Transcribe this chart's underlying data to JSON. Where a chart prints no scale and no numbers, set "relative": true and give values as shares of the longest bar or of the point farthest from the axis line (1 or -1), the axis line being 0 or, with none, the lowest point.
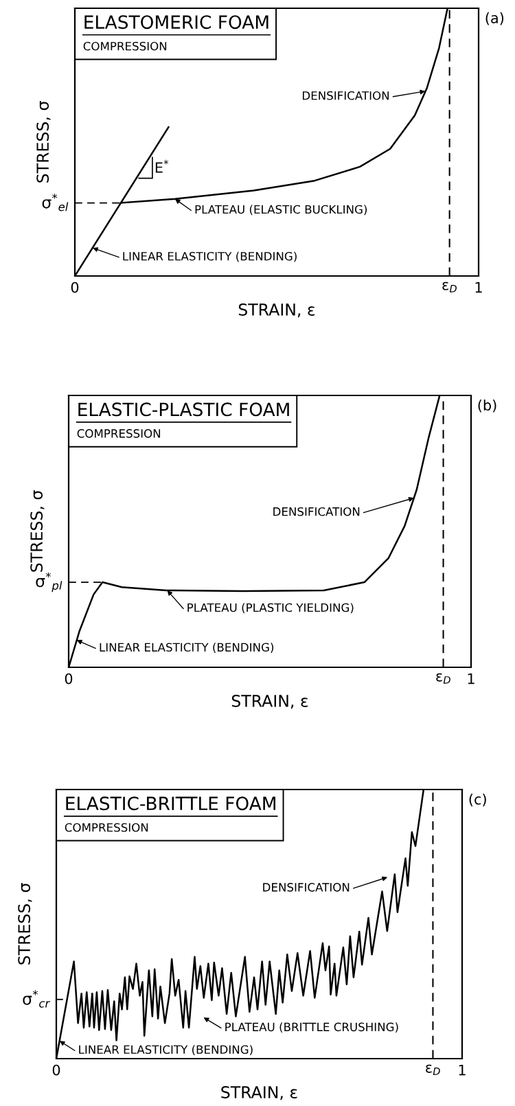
{
  "chart_data": [
    {
      "type": "line",
      "relative": true,
      "title": "ELASTOMERIC FOAM",
      "subtitle": "COMPRESSION",
      "xlabel": "STRAIN, ε",
      "ylabel": "STRESS, σ",
      "xlim": [
        0,
        1
      ],
      "xticks": [
        0,
        1
      ],
      "series": [
        {
          "color": "#000000",
          "x": [
            0,
            0.232
          ],
          "values": [
            0,
            0.556
          ]
        },
        {
          "color": "#000000",
          "x": [
            0.114,
            0.248,
            0.443,
            0.594,
            0.706,
            0.781,
            0.842,
            0.872,
            0.902,
            0.923
          ],
          "values": [
            0.273,
            0.288,
            0.319,
            0.356,
            0.408,
            0.475,
            0.6,
            0.702,
            0.851,
            1.0
          ]
        }
      ],
      "ref_lines": [
        {
          "axis": "y",
          "value": 0.273,
          "label": "σ$^{*}$$_{el}$",
          "line_style": "dashed",
          "color": "#000000"
        },
        {
          "axis": "x",
          "value": 0.928,
          "label": "ε$_{D}$",
          "line_style": "dashed",
          "color": "#000000"
        }
      ],
      "annotations": [
        "(a)",
        "E$^{*}$",
        "DENSIFICATION",
        "PLATEAU (ELASTIC BUCKLING)",
        "LINEAR ELASTICITY (BENDING)"
      ]
    },
    {
      "type": "line",
      "relative": true,
      "title": "ELASTIC-PLASTIC FOAM",
      "subtitle": "COMPRESSION",
      "xlabel": "STRAIN, ε",
      "ylabel": "STRESS, σ",
      "xlim": [
        0,
        1
      ],
      "xticks": [
        0,
        1
      ],
      "series": [
        {
          "color": "#000000",
          "x": [
            0,
            0.027,
            0.062,
            0.084,
            0.132,
            0.243,
            0.433,
            0.634,
            0.735,
            0.795,
            0.835,
            0.865,
            0.895,
            0.922
          ],
          "values": [
            0,
            0.134,
            0.268,
            0.313,
            0.295,
            0.283,
            0.28,
            0.283,
            0.313,
            0.402,
            0.52,
            0.654,
            0.847,
            1.0
          ]
        }
      ],
      "ref_lines": [
        {
          "axis": "y",
          "value": 0.313,
          "label": "σ$^{*}$$_{pl}$",
          "line_style": "dashed",
          "color": "#000000"
        },
        {
          "axis": "x",
          "value": 0.931,
          "label": "ε$_{D}$",
          "line_style": "dashed",
          "color": "#000000"
        }
      ],
      "annotations": [
        "(b)",
        "DENSIFICATION",
        "PLATEAU (PLASTIC YIELDING)",
        "LINEAR ELASTICITY (BENDING)"
      ]
    },
    {
      "type": "line",
      "relative": true,
      "title": "ELASTIC-BRITTLE FOAM",
      "subtitle": "COMPRESSION",
      "xlabel": "STRAIN, ε",
      "ylabel": "STRESS, σ",
      "xlim": [
        0,
        1
      ],
      "xticks": [
        0,
        1
      ],
      "series": [
        {
          "color": "#000000",
          "x": [
            0,
            0.0434,
            0.0535,
            0.062,
            0.0676,
            0.0749,
            0.0817,
            0.0885,
            0.093,
            0.0997,
            0.1054,
            0.1133,
            0.12,
            0.1268,
            0.1352,
            0.1426,
            0.1482,
            0.1561,
            0.1617,
            0.169,
            0.1747,
            0.1803,
            0.1888,
            0.1972,
            0.2057,
            0.2124,
            0.2169,
            0.2282,
            0.2366,
            0.2423,
            0.2507,
            0.2564,
            0.2676,
            0.2789,
            0.2845,
            0.293,
            0.3014,
            0.3127,
            0.3183,
            0.3268,
            0.3409,
            0.3465,
            0.355,
            0.3634,
            0.3747,
            0.3831,
            0.3888,
            0.4,
            0.4085,
            0.4198,
            0.431,
            0.4423,
            0.4648,
            0.4761,
            0.4874,
            0.4958,
            0.5071,
            0.5156,
            0.5257,
            0.5409,
            0.5494,
            0.5578,
            0.5691,
            0.5803,
            0.5944,
            0.6085,
            0.6254,
            0.6367,
            0.6564,
            0.6632,
            0.6722,
            0.6761,
            0.6857,
            0.6902,
            0.7071,
            0.7156,
            0.724,
            0.7325,
            0.7466,
            0.7533,
            0.7691,
            0.7776,
            0.8029,
            0.8153,
            0.8339,
            0.8407,
            0.8604,
            0.866,
            0.8762,
            0.885,
            0.905
          ],
          "values": [
            0,
            0.361,
            0.132,
            0.242,
            0.115,
            0.247,
            0.119,
            0.242,
            0.115,
            0.247,
            0.106,
            0.251,
            0.11,
            0.255,
            0.106,
            0.213,
            0.068,
            0.242,
            0.183,
            0.302,
            0.183,
            0.306,
            0.259,
            0.353,
            0.234,
            0.285,
            0.085,
            0.328,
            0.157,
            0.332,
            0.149,
            0.268,
            0.132,
            0.242,
            0.37,
            0.234,
            0.293,
            0.115,
            0.251,
            0.115,
            0.378,
            0.259,
            0.344,
            0.226,
            0.353,
            0.217,
            0.357,
            0.234,
            0.336,
            0.166,
            0.319,
            0.157,
            0.378,
            0.174,
            0.302,
            0.183,
            0.361,
            0.2,
            0.361,
            0.166,
            0.328,
            0.208,
            0.387,
            0.251,
            0.392,
            0.234,
            0.4,
            0.226,
            0.429,
            0.328,
            0.417,
            0.238,
            0.353,
            0.234,
            0.413,
            0.276,
            0.455,
            0.302,
            0.472,
            0.349,
            0.523,
            0.387,
            0.621,
            0.474,
            0.685,
            0.544,
            0.744,
            0.642,
            0.842,
            0.79,
            1.0
          ]
        }
      ],
      "ref_lines": [
        {
          "axis": "y",
          "value": 0.22,
          "label": "σ$^{*}$$_{cr}$",
          "color": "#000000"
        },
        {
          "axis": "x",
          "value": 0.928,
          "label": "ε$_{D}$",
          "line_style": "dashed",
          "color": "#000000"
        }
      ],
      "annotations": [
        "(c)",
        "DENSIFICATION",
        "PLATEAU (BRITTLE CRUSHING)",
        "LINEAR ELASTICITY (BENDING)"
      ]
    }
  ]
}
